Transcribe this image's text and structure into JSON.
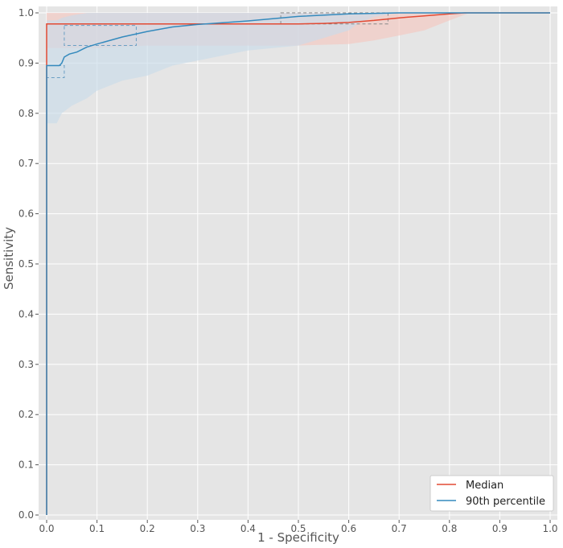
{
  "chart_data": {
    "type": "line",
    "title": "",
    "xlabel": "1 - Specificity",
    "ylabel": "Sensitivity",
    "xlim": [
      0,
      1
    ],
    "ylim": [
      0,
      1
    ],
    "grid": true,
    "legend_position": "bottom-right",
    "x_ticks": [
      "0.0",
      "0.1",
      "0.2",
      "0.3",
      "0.4",
      "0.5",
      "0.6",
      "0.7",
      "0.8",
      "0.9",
      "1.0"
    ],
    "y_ticks": [
      "0.0",
      "0.1",
      "0.2",
      "0.3",
      "0.4",
      "0.5",
      "0.6",
      "0.7",
      "0.8",
      "0.9",
      "1.0"
    ],
    "series": [
      {
        "name": "Median",
        "color": "#e24a33",
        "x": [
          0,
          0,
          0.02,
          0.1,
          0.3,
          0.5,
          0.55,
          0.6,
          0.65,
          0.7,
          0.75,
          0.8,
          0.83,
          0.9,
          1.0
        ],
        "y": [
          0,
          0.978,
          0.978,
          0.978,
          0.978,
          0.978,
          0.979,
          0.981,
          0.985,
          0.99,
          0.994,
          0.998,
          1.0,
          1.0,
          1.0
        ],
        "band": {
          "color": "#f4c8c0",
          "x": [
            0,
            0.1,
            0.2,
            0.3,
            0.4,
            0.5,
            0.6,
            0.65,
            0.7,
            0.75,
            0.8,
            0.84
          ],
          "lower": [
            0.93,
            0.93,
            0.935,
            0.935,
            0.935,
            0.935,
            0.938,
            0.945,
            0.955,
            0.965,
            0.985,
            1.0
          ],
          "upper": [
            1.0,
            1.0,
            1.0,
            1.0,
            1.0,
            1.0,
            1.0,
            1.0,
            1.0,
            1.0,
            1.0,
            1.0
          ]
        }
      },
      {
        "name": "90th percentile",
        "color": "#348abd",
        "x": [
          0,
          0,
          0.01,
          0.025,
          0.03,
          0.035,
          0.045,
          0.06,
          0.08,
          0.1,
          0.15,
          0.2,
          0.25,
          0.3,
          0.4,
          0.5,
          0.6,
          0.7,
          0.8,
          0.9,
          1.0
        ],
        "y": [
          0,
          0.895,
          0.895,
          0.895,
          0.9,
          0.912,
          0.918,
          0.922,
          0.932,
          0.938,
          0.952,
          0.963,
          0.972,
          0.977,
          0.984,
          0.993,
          0.998,
          1.0,
          1.0,
          1.0,
          1.0
        ],
        "band": {
          "color": "#c9dcea",
          "x": [
            0,
            0.02,
            0.03,
            0.05,
            0.08,
            0.1,
            0.15,
            0.2,
            0.25,
            0.3,
            0.35,
            0.4,
            0.5,
            0.55,
            0.6,
            0.62,
            0.65,
            0.7
          ],
          "lower": [
            0.78,
            0.78,
            0.8,
            0.815,
            0.83,
            0.845,
            0.865,
            0.875,
            0.895,
            0.905,
            0.915,
            0.925,
            0.935,
            0.95,
            0.965,
            0.98,
            0.992,
            1.0
          ],
          "upper": [
            0.985,
            0.985,
            0.99,
            0.995,
            1.0,
            1.0,
            1.0,
            1.0,
            1.0,
            1.0,
            1.0,
            1.0,
            1.0,
            1.0,
            1.0,
            1.0,
            1.0,
            1.0
          ]
        }
      }
    ],
    "zoom_boxes": [
      {
        "x0": 0.0,
        "x1": 0.035,
        "y0": 0.871,
        "y1": 0.895
      },
      {
        "x0": 0.035,
        "x1": 0.178,
        "y0": 0.935,
        "y1": 0.975
      },
      {
        "x0": 0.465,
        "x1": 0.678,
        "y0": 0.978,
        "y1": 1.0
      }
    ]
  }
}
